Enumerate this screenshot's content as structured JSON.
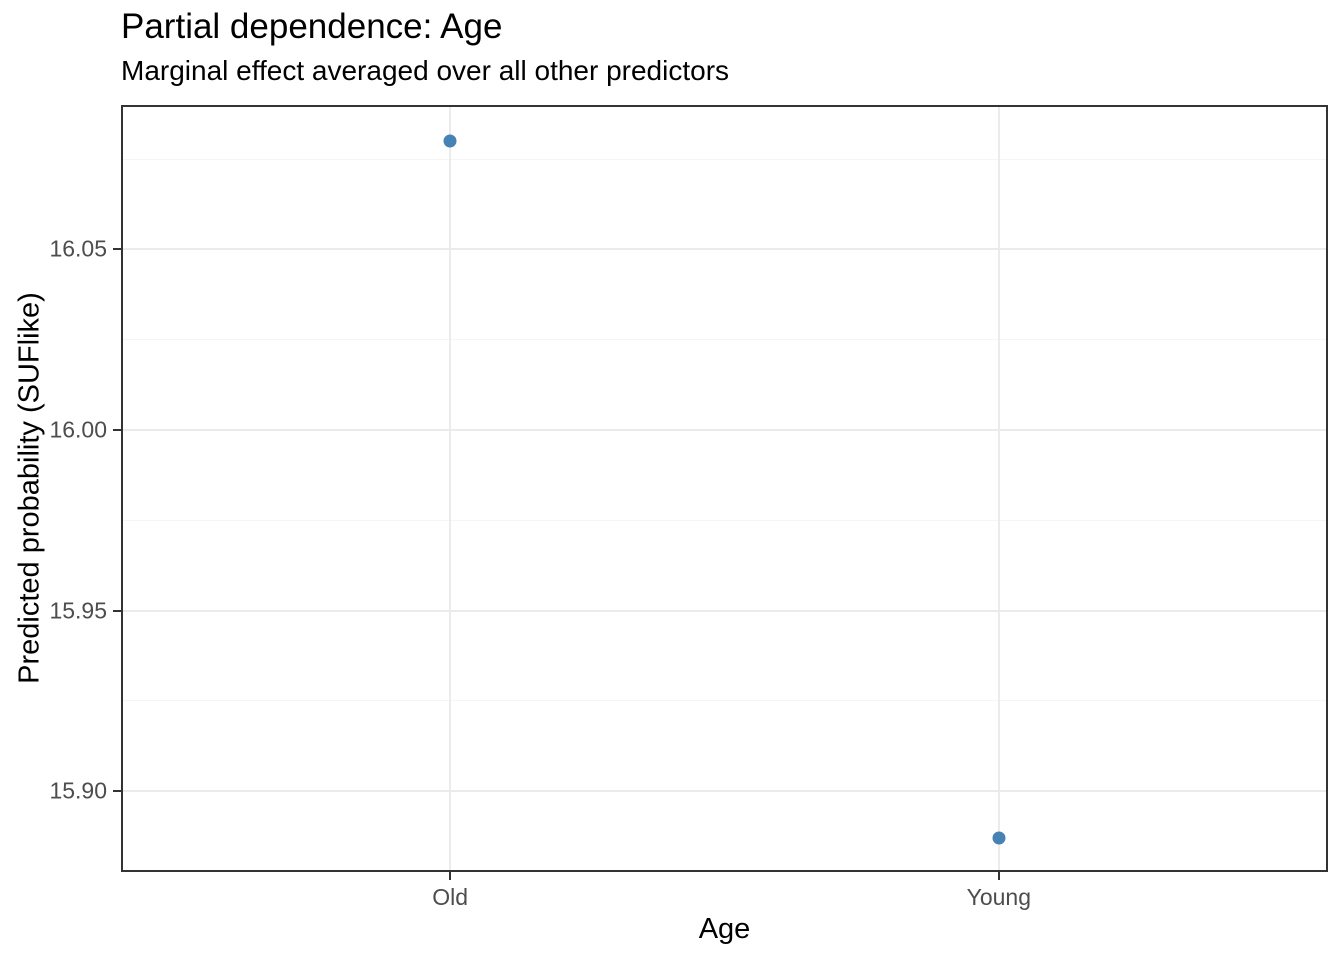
{
  "chart_data": {
    "type": "scatter",
    "title": "Partial dependence: Age",
    "subtitle": "Marginal effect averaged over all other predictors",
    "xlabel": "Age",
    "ylabel": "Predicted probability (SUFlike)",
    "categories": [
      "Old",
      "Young"
    ],
    "values": [
      16.08,
      15.887
    ],
    "ylim": [
      15.8776,
      16.09
    ],
    "y_major": [
      16.05,
      16.0,
      15.95,
      15.9
    ],
    "y_major_labels": [
      "16.05",
      "16.00",
      "15.95",
      "15.90"
    ],
    "y_minor": [
      16.075,
      16.025,
      15.975,
      15.925
    ],
    "grid": true,
    "legend": "none",
    "colors": {
      "point": "#4682B4",
      "grid_major": "#ebebeb",
      "grid_minor": "#f5f5f5",
      "panel_border": "#333333",
      "tick": "#333333",
      "tick_label": "#4d4d4d",
      "text": "#000000",
      "background": "#ffffff"
    }
  }
}
